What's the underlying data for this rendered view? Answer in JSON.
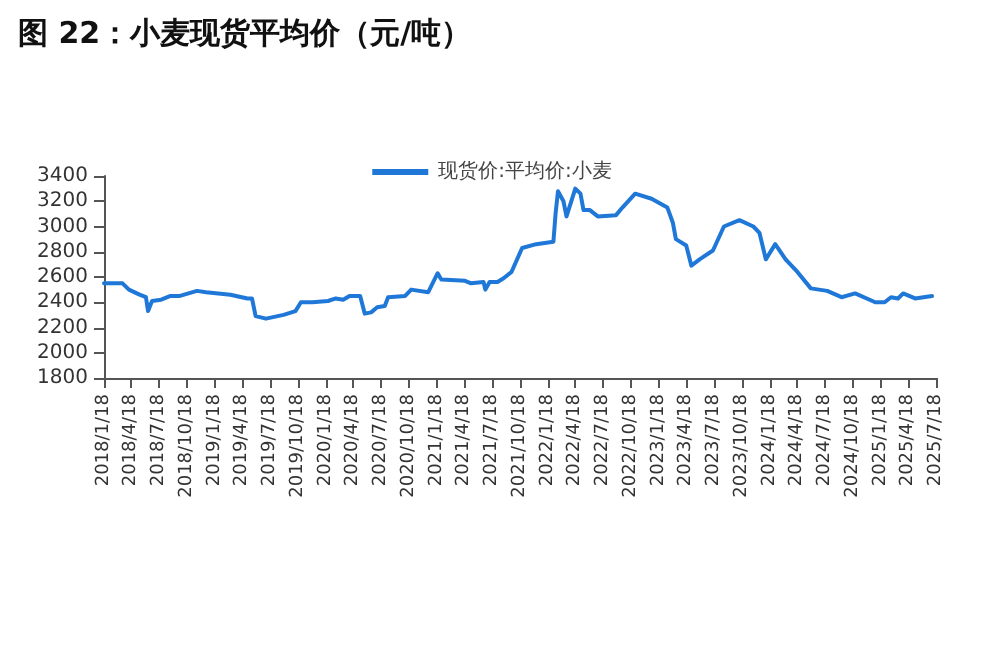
{
  "chart_data": {
    "type": "line",
    "title": "图 22：小麦现货平均价（元/吨）",
    "legend": "top",
    "grid": false,
    "marker": "none",
    "line_style": "solid",
    "ylim": [
      1800,
      3400
    ],
    "yticks": [
      1800,
      2000,
      2200,
      2400,
      2600,
      2800,
      3000,
      3200,
      3400
    ],
    "xlim": [
      "2018-01-18",
      "2025-07-18"
    ],
    "xticks": [
      {
        "value": "2018-01-18",
        "label": "2018/1/18"
      },
      {
        "value": "2018-04-18",
        "label": "2018/4/18"
      },
      {
        "value": "2018-07-18",
        "label": "2018/7/18"
      },
      {
        "value": "2018-10-18",
        "label": "2018/10/18"
      },
      {
        "value": "2019-01-18",
        "label": "2019/1/18"
      },
      {
        "value": "2019-04-18",
        "label": "2019/4/18"
      },
      {
        "value": "2019-07-18",
        "label": "2019/7/18"
      },
      {
        "value": "2019-10-18",
        "label": "2019/10/18"
      },
      {
        "value": "2020-01-18",
        "label": "2020/1/18"
      },
      {
        "value": "2020-04-18",
        "label": "2020/4/18"
      },
      {
        "value": "2020-07-18",
        "label": "2020/7/18"
      },
      {
        "value": "2020-10-18",
        "label": "2020/10/18"
      },
      {
        "value": "2021-01-18",
        "label": "2021/1/18"
      },
      {
        "value": "2021-04-18",
        "label": "2021/4/18"
      },
      {
        "value": "2021-07-18",
        "label": "2021/7/18"
      },
      {
        "value": "2021-10-18",
        "label": "2021/10/18"
      },
      {
        "value": "2022-01-18",
        "label": "2022/1/18"
      },
      {
        "value": "2022-04-18",
        "label": "2022/4/18"
      },
      {
        "value": "2022-07-18",
        "label": "2022/7/18"
      },
      {
        "value": "2022-10-18",
        "label": "2022/10/18"
      },
      {
        "value": "2023-01-18",
        "label": "2023/1/18"
      },
      {
        "value": "2023-04-18",
        "label": "2023/4/18"
      },
      {
        "value": "2023-07-18",
        "label": "2023/7/18"
      },
      {
        "value": "2023-10-18",
        "label": "2023/10/18"
      },
      {
        "value": "2024-01-18",
        "label": "2024/1/18"
      },
      {
        "value": "2024-04-18",
        "label": "2024/4/18"
      },
      {
        "value": "2024-07-18",
        "label": "2024/7/18"
      },
      {
        "value": "2024-10-18",
        "label": "2024/10/18"
      },
      {
        "value": "2025-01-18",
        "label": "2025/1/18"
      },
      {
        "value": "2025-04-18",
        "label": "2025/4/18"
      },
      {
        "value": "2025-07-18",
        "label": "2025/7/18"
      }
    ],
    "series": [
      {
        "name": "现货价:平均价:小麦",
        "color": "#1f78d8",
        "x": [
          "2018-01-18",
          "2018-03-20",
          "2018-04-10",
          "2018-05-15",
          "2018-06-05",
          "2018-06-12",
          "2018-06-25",
          "2018-07-25",
          "2018-08-25",
          "2018-09-25",
          "2018-11-20",
          "2018-12-20",
          "2019-03-10",
          "2019-05-05",
          "2019-05-20",
          "2019-06-01",
          "2019-07-05",
          "2019-09-01",
          "2019-10-10",
          "2019-10-28",
          "2019-12-05",
          "2020-01-25",
          "2020-02-20",
          "2020-03-15",
          "2020-04-05",
          "2020-05-10",
          "2020-05-25",
          "2020-06-15",
          "2020-07-05",
          "2020-07-30",
          "2020-08-10",
          "2020-10-05",
          "2020-10-25",
          "2020-12-20",
          "2021-01-20",
          "2021-02-01",
          "2021-04-20",
          "2021-05-10",
          "2021-06-20",
          "2021-06-26",
          "2021-07-10",
          "2021-08-05",
          "2021-08-25",
          "2021-09-20",
          "2021-10-25",
          "2021-12-10",
          "2022-02-05",
          "2022-02-12",
          "2022-02-20",
          "2022-03-10",
          "2022-03-20",
          "2022-04-18",
          "2022-05-05",
          "2022-05-15",
          "2022-06-05",
          "2022-07-01",
          "2022-08-30",
          "2022-09-20",
          "2022-11-01",
          "2022-12-25",
          "2023-02-15",
          "2023-03-05",
          "2023-03-15",
          "2023-04-18",
          "2023-05-05",
          "2023-06-01",
          "2023-07-15",
          "2023-08-20",
          "2023-10-10",
          "2023-11-25",
          "2023-12-15",
          "2024-01-05",
          "2024-02-05",
          "2024-03-10",
          "2024-04-18",
          "2024-06-01",
          "2024-07-25",
          "2024-09-10",
          "2024-10-25",
          "2024-12-30",
          "2025-01-30",
          "2025-02-20",
          "2025-03-15",
          "2025-04-01",
          "2025-05-10",
          "2025-07-05"
        ],
        "values": [
          2550,
          2550,
          2500,
          2460,
          2440,
          2330,
          2410,
          2420,
          2450,
          2450,
          2490,
          2480,
          2460,
          2430,
          2430,
          2290,
          2270,
          2300,
          2330,
          2400,
          2400,
          2410,
          2430,
          2420,
          2450,
          2450,
          2310,
          2320,
          2360,
          2370,
          2440,
          2450,
          2500,
          2480,
          2630,
          2580,
          2570,
          2550,
          2560,
          2500,
          2560,
          2560,
          2590,
          2640,
          2830,
          2860,
          2880,
          3100,
          3280,
          3200,
          3080,
          3300,
          3260,
          3130,
          3130,
          3080,
          3090,
          3150,
          3260,
          3220,
          3150,
          3030,
          2900,
          2850,
          2690,
          2740,
          2810,
          3000,
          3050,
          3000,
          2950,
          2740,
          2860,
          2740,
          2640,
          2510,
          2490,
          2440,
          2470,
          2400,
          2400,
          2440,
          2430,
          2470,
          2430,
          2450
        ]
      }
    ]
  }
}
